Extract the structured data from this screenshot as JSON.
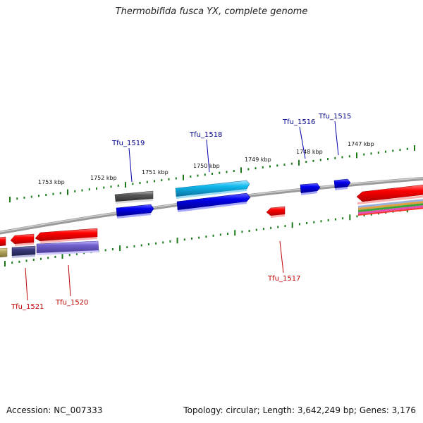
{
  "title": "Thermobifida fusca YX, complete genome",
  "footer": {
    "accession": "Accession: NC_007333",
    "summary": "Topology: circular; Length: 3,642,249 bp; Genes: 3,176"
  },
  "ticks": [
    {
      "label": "1747 kbp"
    },
    {
      "label": "1748 kbp"
    },
    {
      "label": "1749 kbp"
    },
    {
      "label": "1750 kbp"
    },
    {
      "label": "1751 kbp"
    },
    {
      "label": "1752 kbp"
    },
    {
      "label": "1753 kbp"
    }
  ],
  "gene_labels": {
    "forward": [
      "Tfu_1515",
      "Tfu_1516",
      "Tfu_1518",
      "Tfu_1519"
    ],
    "reverse": [
      "Tfu_1517",
      "Tfu_1520",
      "Tfu_1521"
    ]
  },
  "colors": {
    "forward_label": "#00008b",
    "reverse_label": "#c00000",
    "tick": "#1a7a1a",
    "backbone": "#808080",
    "gene_red": "#ff0000",
    "gene_blue": "#0000ee",
    "gene_cyan": "#11bbee",
    "gene_gray": "#5a5a5a",
    "gene_navy": "#3a3a80",
    "gene_purple": "#7060cc",
    "gene_olive": "#b5a860"
  }
}
